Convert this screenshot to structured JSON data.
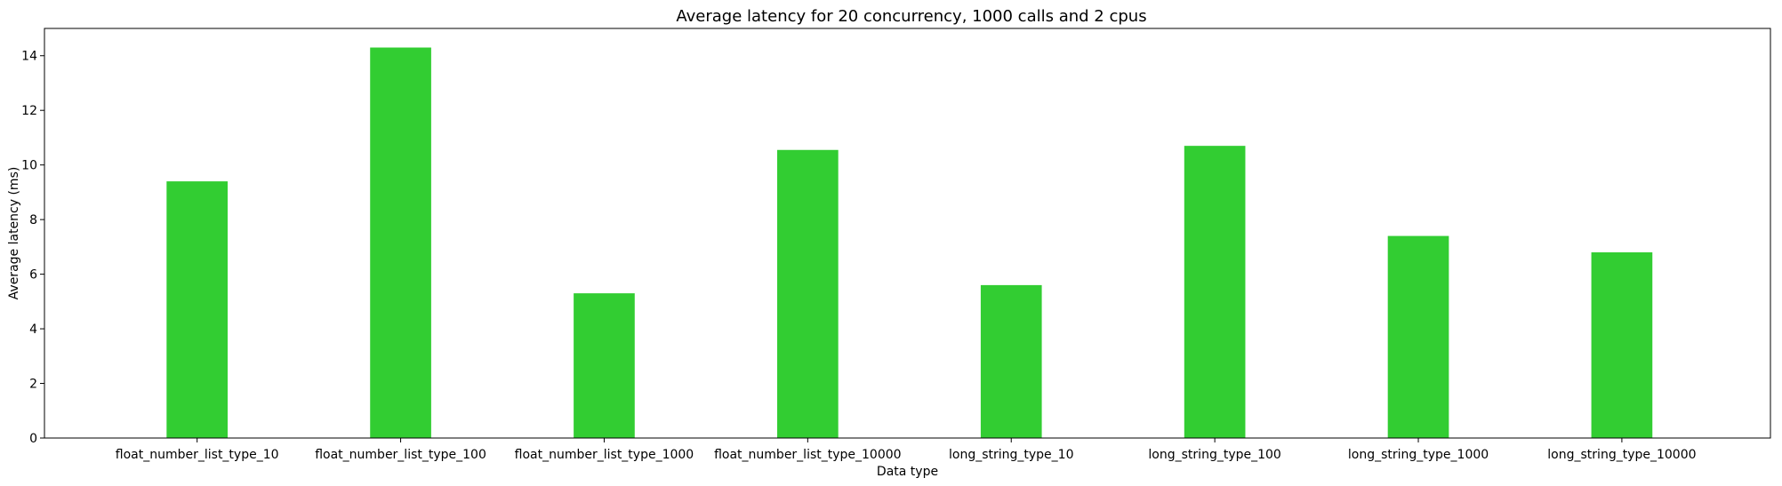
{
  "chart_data": {
    "type": "bar",
    "title": "Average latency for 20 concurrency, 1000 calls and 2 cpus",
    "xlabel": "Data type",
    "ylabel": "Average latency (ms)",
    "categories": [
      "float_number_list_type_10",
      "float_number_list_type_100",
      "float_number_list_type_1000",
      "float_number_list_type_10000",
      "long_string_type_10",
      "long_string_type_100",
      "long_string_type_1000",
      "long_string_type_10000"
    ],
    "values": [
      9.4,
      14.3,
      5.3,
      10.55,
      5.6,
      10.7,
      7.4,
      6.8
    ],
    "ylim": [
      0,
      15
    ],
    "yticks": [
      "0",
      "2",
      "4",
      "6",
      "8",
      "10",
      "12",
      "14"
    ],
    "grid": false,
    "bar_color": "#32cd32"
  }
}
